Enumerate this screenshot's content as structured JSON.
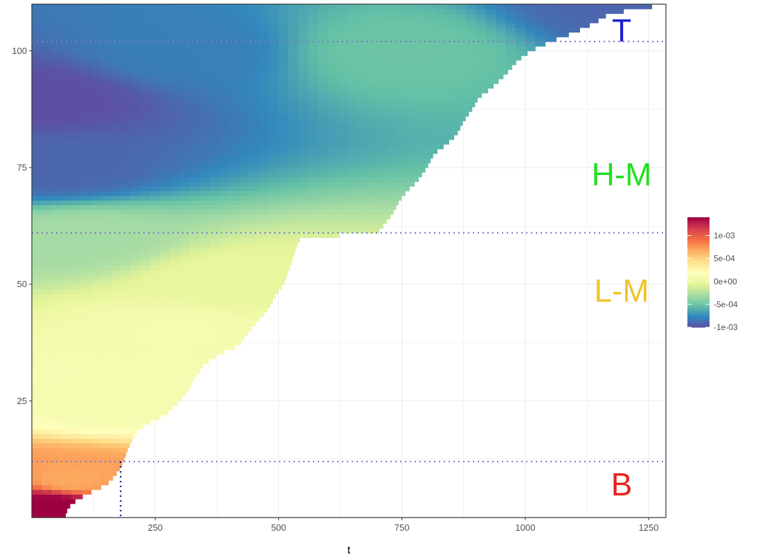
{
  "chart_data": {
    "type": "heatmap",
    "title": "",
    "xlabel": "t",
    "ylabel": "",
    "xlim": [
      0,
      1285
    ],
    "ylim": [
      0,
      110
    ],
    "x_ticks": [
      "250",
      "500",
      "750",
      "1000",
      "1250"
    ],
    "y_ticks": [
      "25",
      "50",
      "75",
      "100"
    ],
    "grid": true,
    "colormap": "Spectral",
    "color_range": [
      -0.001,
      0.0014
    ],
    "legend": {
      "position": "right",
      "labels": [
        "1e-03",
        "5e-04",
        "0e+00",
        "-5e-04",
        "-1e-03"
      ],
      "values": [
        0.001,
        0.0005,
        0,
        -0.0005,
        -0.001
      ]
    },
    "zone_boundaries": [
      {
        "axis": "y",
        "value": 12,
        "color": "#7b7bc8"
      },
      {
        "axis": "y",
        "value": 61,
        "color": "#7b7bc8"
      },
      {
        "axis": "y",
        "value": 102,
        "color": "#7b7bc8"
      },
      {
        "axis": "x",
        "value": 180,
        "color": "#0000aa"
      }
    ],
    "zone_labels": [
      {
        "text": "T",
        "color": "#1f1fd6"
      },
      {
        "text": "H-M",
        "color": "#22e022"
      },
      {
        "text": "L-M",
        "color": "#f0c52c"
      },
      {
        "text": "B",
        "color": "#e8201e"
      }
    ],
    "frontier": {
      "y": [
        1,
        3,
        5,
        7,
        8,
        10,
        12,
        15,
        18,
        20,
        22,
        25,
        27,
        30,
        33,
        35,
        37,
        40,
        43,
        45,
        48,
        50,
        53,
        56,
        58,
        60,
        61,
        63,
        65,
        68,
        70,
        72,
        75,
        78,
        80,
        82,
        85,
        88,
        90,
        92,
        95,
        98,
        100,
        102,
        104,
        106,
        108,
        110
      ],
      "t_end": [
        68,
        80,
        110,
        150,
        160,
        175,
        185,
        195,
        210,
        230,
        270,
        300,
        315,
        330,
        350,
        380,
        420,
        440,
        465,
        480,
        495,
        510,
        520,
        530,
        535,
        545,
        700,
        715,
        730,
        745,
        760,
        780,
        800,
        815,
        840,
        860,
        875,
        895,
        905,
        930,
        960,
        985,
        1010,
        1050,
        1100,
        1140,
        1170,
        1285
      ]
    },
    "value_samples": [
      {
        "y": 3,
        "t": 40,
        "v": 0.0014
      },
      {
        "y": 8,
        "t": 80,
        "v": 0.0007
      },
      {
        "y": 25,
        "t": 150,
        "v": 0.0001
      },
      {
        "y": 40,
        "t": 300,
        "v": 0.0001
      },
      {
        "y": 50,
        "t": 400,
        "v": 0.0
      },
      {
        "y": 60,
        "t": 100,
        "v": -0.0003
      },
      {
        "y": 75,
        "t": 50,
        "v": -0.0009
      },
      {
        "y": 90,
        "t": 20,
        "v": -0.001
      },
      {
        "y": 100,
        "t": 300,
        "v": -0.0008
      },
      {
        "y": 100,
        "t": 750,
        "v": -0.0005
      },
      {
        "y": 110,
        "t": 1200,
        "v": -0.0009
      }
    ]
  }
}
